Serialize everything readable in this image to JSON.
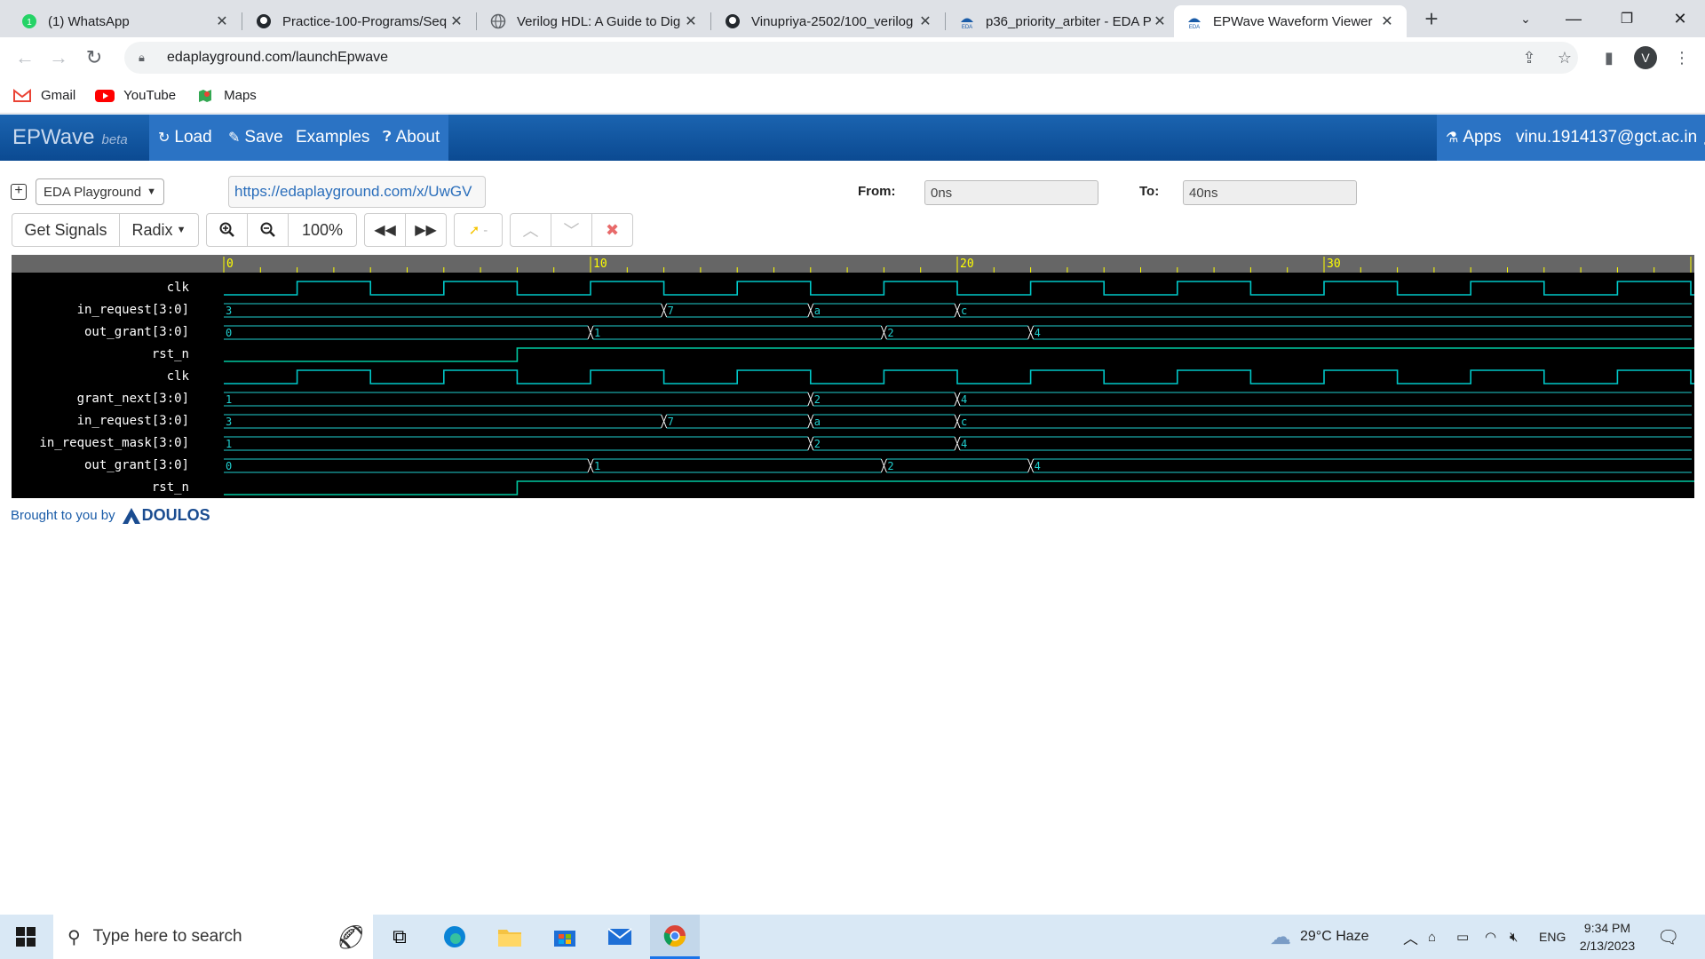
{
  "browser": {
    "tabs": [
      {
        "title": "(1) WhatsApp",
        "icon": "whatsapp-icon",
        "active": false
      },
      {
        "title": "Practice-100-Programs/Seq",
        "icon": "github-icon",
        "active": false
      },
      {
        "title": "Verilog HDL: A Guide to Dig",
        "icon": "globe-icon",
        "active": false
      },
      {
        "title": "Vinupriya-2502/100_verilog",
        "icon": "github-icon",
        "active": false
      },
      {
        "title": "p36_priority_arbiter - EDA P",
        "icon": "eda-icon",
        "active": false
      },
      {
        "title": "EPWave Waveform Viewer",
        "icon": "eda-icon",
        "active": true
      }
    ],
    "address": "edaplayground.com/launchEpwave",
    "profile_initial": "V",
    "bookmarks": [
      {
        "label": "Gmail",
        "icon": "gmail-icon"
      },
      {
        "label": "YouTube",
        "icon": "youtube-icon"
      },
      {
        "label": "Maps",
        "icon": "maps-icon"
      }
    ]
  },
  "app": {
    "brand": "EPWave",
    "brand_sub": "beta",
    "nav": {
      "load": "Load",
      "save": "Save",
      "examples": "Examples",
      "about": "About",
      "apps": "Apps",
      "user": "vinu.1914137@gct.ac.in"
    },
    "source_select": "EDA Playground",
    "share_url": "https://edaplayground.com/x/UwGV",
    "from_label": "From:",
    "from_value": "0ns",
    "to_label": "To:",
    "to_value": "40ns",
    "toolbar": {
      "get_signals": "Get Signals",
      "radix": "Radix",
      "zoom": "100%",
      "marker": "-"
    },
    "credit": "Brought to you by",
    "credit_brand": "DOULOS"
  },
  "waveform": {
    "time_range_ns": [
      0,
      40
    ],
    "ruler_labels": [
      "0",
      "10",
      "20",
      "30"
    ],
    "colors": {
      "background": "#000000",
      "ruler": "#666666",
      "ruler_text": "#ffff00",
      "clock": "#00c8c8",
      "bus": "#20d0d0",
      "digital": "#00c8a0"
    },
    "signals": [
      {
        "name": "clk",
        "kind": "clock",
        "period_ns": 4,
        "first_rise_ns": 2
      },
      {
        "name": "in_request[3:0]",
        "kind": "bus",
        "values": [
          {
            "t": 0,
            "v": "3"
          },
          {
            "t": 12,
            "v": "7"
          },
          {
            "t": 16,
            "v": "a"
          },
          {
            "t": 20,
            "v": "c"
          }
        ]
      },
      {
        "name": "out_grant[3:0]",
        "kind": "bus",
        "values": [
          {
            "t": 0,
            "v": "0"
          },
          {
            "t": 10,
            "v": "1"
          },
          {
            "t": 18,
            "v": "2"
          },
          {
            "t": 22,
            "v": "4"
          }
        ]
      },
      {
        "name": "rst_n",
        "kind": "bit",
        "values": [
          {
            "t": 0,
            "v": 0
          },
          {
            "t": 8,
            "v": 1
          }
        ]
      },
      {
        "name": "clk",
        "kind": "clock",
        "period_ns": 4,
        "first_rise_ns": 2
      },
      {
        "name": "grant_next[3:0]",
        "kind": "bus",
        "values": [
          {
            "t": 0,
            "v": "1"
          },
          {
            "t": 16,
            "v": "2"
          },
          {
            "t": 20,
            "v": "4"
          }
        ]
      },
      {
        "name": "in_request[3:0]",
        "kind": "bus",
        "values": [
          {
            "t": 0,
            "v": "3"
          },
          {
            "t": 12,
            "v": "7"
          },
          {
            "t": 16,
            "v": "a"
          },
          {
            "t": 20,
            "v": "c"
          }
        ]
      },
      {
        "name": "in_request_mask[3:0]",
        "kind": "bus",
        "values": [
          {
            "t": 0,
            "v": "1"
          },
          {
            "t": 16,
            "v": "2"
          },
          {
            "t": 20,
            "v": "4"
          }
        ]
      },
      {
        "name": "out_grant[3:0]",
        "kind": "bus",
        "values": [
          {
            "t": 0,
            "v": "0"
          },
          {
            "t": 10,
            "v": "1"
          },
          {
            "t": 18,
            "v": "2"
          },
          {
            "t": 22,
            "v": "4"
          }
        ]
      },
      {
        "name": "rst_n",
        "kind": "bit",
        "values": [
          {
            "t": 0,
            "v": 0
          },
          {
            "t": 8,
            "v": 1
          }
        ]
      }
    ]
  },
  "taskbar": {
    "search_placeholder": "Type here to search",
    "weather": "29°C  Haze",
    "lang": "ENG",
    "time": "9:34 PM",
    "date": "2/13/2023"
  }
}
